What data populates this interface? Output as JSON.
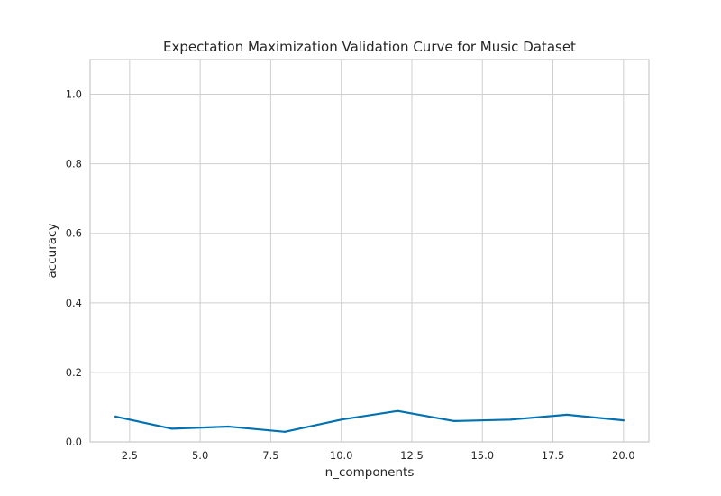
{
  "chart_data": {
    "type": "line",
    "title": "Expectation Maximization Validation Curve for Music Dataset",
    "xlabel": "n_components",
    "ylabel": "accuracy",
    "xlim": [
      1.1,
      20.9
    ],
    "ylim": [
      0,
      1.1
    ],
    "xticks": [
      2.5,
      5.0,
      7.5,
      10.0,
      12.5,
      15.0,
      17.5,
      20.0
    ],
    "xtick_labels": [
      "2.5",
      "5.0",
      "7.5",
      "10.0",
      "12.5",
      "15.0",
      "17.5",
      "20.0"
    ],
    "yticks": [
      0,
      0.2,
      0.4,
      0.6,
      0.8,
      1.0
    ],
    "ytick_labels": [
      "0.0",
      "0.2",
      "0.4",
      "0.6",
      "0.8",
      "1.0"
    ],
    "grid": true,
    "series": [
      {
        "color": "#0072b2",
        "x": [
          2,
          4,
          6,
          8,
          10,
          12,
          14,
          16,
          18,
          20
        ],
        "y": [
          0.073,
          0.038,
          0.044,
          0.029,
          0.064,
          0.089,
          0.06,
          0.064,
          0.078,
          0.062
        ]
      }
    ]
  }
}
